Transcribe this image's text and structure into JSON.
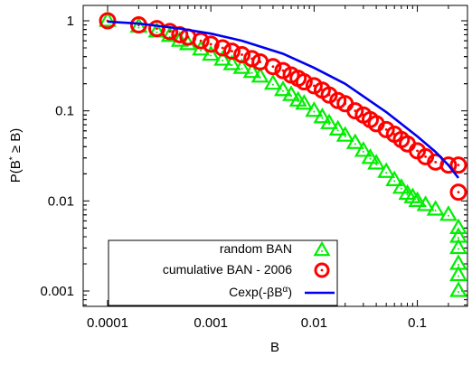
{
  "chart_data": {
    "type": "scatter",
    "xlabel": "B",
    "ylabel_parts": [
      "P(B",
      "*",
      " ≥ B)"
    ],
    "x_scale": "log",
    "y_scale": "log",
    "xlim": [
      0.0001,
      0.25
    ],
    "ylim": [
      0.0006,
      1.5
    ],
    "x_ticks": [
      {
        "value": 0.0001,
        "label": "0.0001"
      },
      {
        "value": 0.001,
        "label": "0.001"
      },
      {
        "value": 0.01,
        "label": "0.01"
      },
      {
        "value": 0.1,
        "label": "0.1"
      }
    ],
    "y_ticks": [
      {
        "value": 1,
        "label": "1"
      },
      {
        "value": 0.1,
        "label": "0.1"
      },
      {
        "value": 0.01,
        "label": "0.01"
      },
      {
        "value": 0.001,
        "label": "0.001"
      }
    ],
    "legend_position": "bottom-left",
    "series": [
      {
        "name": "random BAN",
        "marker": "triangle",
        "color": "#00ee00",
        "x": [
          0.0001,
          0.0002,
          0.0003,
          0.0004,
          0.0005,
          0.0006,
          0.0008,
          0.001,
          0.0013,
          0.0016,
          0.002,
          0.0025,
          0.003,
          0.004,
          0.005,
          0.006,
          0.007,
          0.008,
          0.01,
          0.012,
          0.014,
          0.017,
          0.02,
          0.025,
          0.03,
          0.035,
          0.04,
          0.05,
          0.06,
          0.07,
          0.08,
          0.09,
          0.1,
          0.12,
          0.15,
          0.2,
          0.25,
          0.25,
          0.25,
          0.25,
          0.25,
          0.25
        ],
        "y": [
          1.0,
          0.86,
          0.76,
          0.68,
          0.6,
          0.55,
          0.48,
          0.42,
          0.37,
          0.33,
          0.3,
          0.27,
          0.24,
          0.2,
          0.17,
          0.15,
          0.13,
          0.12,
          0.1,
          0.085,
          0.073,
          0.062,
          0.053,
          0.044,
          0.036,
          0.03,
          0.026,
          0.021,
          0.017,
          0.014,
          0.012,
          0.011,
          0.01,
          0.009,
          0.008,
          0.007,
          0.005,
          0.004,
          0.003,
          0.002,
          0.0015,
          0.001
        ]
      },
      {
        "name": "cumulative BAN - 2006",
        "marker": "circle",
        "color": "#ff0000",
        "x": [
          0.0001,
          0.0002,
          0.0003,
          0.0004,
          0.0005,
          0.0006,
          0.0008,
          0.001,
          0.0013,
          0.0016,
          0.002,
          0.0025,
          0.003,
          0.004,
          0.005,
          0.006,
          0.007,
          0.008,
          0.01,
          0.012,
          0.014,
          0.017,
          0.02,
          0.025,
          0.03,
          0.035,
          0.04,
          0.05,
          0.06,
          0.07,
          0.08,
          0.1,
          0.12,
          0.15,
          0.2,
          0.25,
          0.25
        ],
        "y": [
          1.0,
          0.9,
          0.82,
          0.76,
          0.7,
          0.66,
          0.6,
          0.55,
          0.5,
          0.46,
          0.42,
          0.38,
          0.35,
          0.31,
          0.28,
          0.25,
          0.23,
          0.21,
          0.19,
          0.17,
          0.15,
          0.13,
          0.12,
          0.1,
          0.09,
          0.08,
          0.072,
          0.062,
          0.055,
          0.048,
          0.043,
          0.036,
          0.031,
          0.027,
          0.025,
          0.025,
          0.0125
        ]
      },
      {
        "name": "Cexp(-βB^α)",
        "legend_parts": [
          "Cexp(-βB",
          "α",
          ")"
        ],
        "marker": "line",
        "color": "#0000ee",
        "x": [
          0.0001,
          0.0002,
          0.0005,
          0.001,
          0.002,
          0.005,
          0.01,
          0.02,
          0.05,
          0.1,
          0.15,
          0.2,
          0.25
        ],
        "y": [
          0.98,
          0.93,
          0.82,
          0.72,
          0.6,
          0.43,
          0.3,
          0.2,
          0.097,
          0.052,
          0.035,
          0.025,
          0.018
        ]
      }
    ]
  }
}
